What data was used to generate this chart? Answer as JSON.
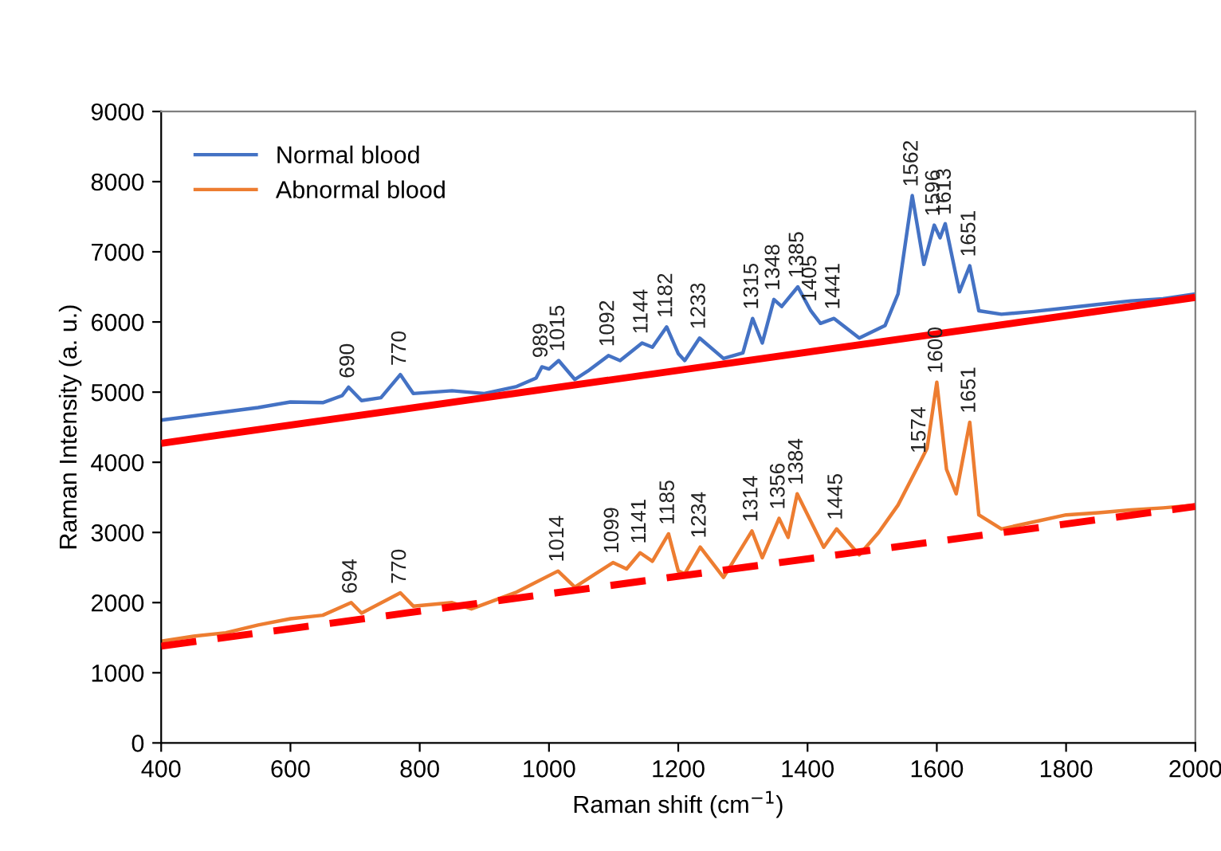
{
  "chart_data": {
    "type": "line",
    "xlabel": "Raman shift (cm$^{−1}$)",
    "ylabel": "Raman Intensity (a. u.)",
    "xlim": [
      400,
      2000
    ],
    "xticks": [
      400,
      600,
      800,
      1000,
      1200,
      1400,
      1600,
      1800,
      2000
    ],
    "ylim": [
      0,
      9000
    ],
    "yticks": [
      0,
      1000,
      2000,
      3000,
      4000,
      5000,
      6000,
      7000,
      8000,
      9000
    ],
    "grid": false,
    "legend": "top left",
    "marker": "none",
    "series": [
      {
        "name": "Normal blood",
        "color": "#4472c4",
        "line_style": "solid",
        "x": [
          400,
          450,
          500,
          550,
          600,
          650,
          680,
          690,
          710,
          740,
          770,
          790,
          850,
          900,
          950,
          980,
          989,
          1000,
          1015,
          1040,
          1060,
          1092,
          1110,
          1144,
          1160,
          1182,
          1200,
          1210,
          1233,
          1270,
          1300,
          1315,
          1330,
          1348,
          1360,
          1385,
          1405,
          1420,
          1441,
          1480,
          1520,
          1540,
          1562,
          1580,
          1596,
          1605,
          1613,
          1635,
          1651,
          1665,
          1700,
          1750,
          1800,
          1850,
          1900,
          1950,
          2000
        ],
        "values": [
          4600,
          4660,
          4720,
          4780,
          4860,
          4850,
          4950,
          5070,
          4880,
          4920,
          5250,
          4980,
          5020,
          4980,
          5080,
          5200,
          5360,
          5330,
          5450,
          5180,
          5300,
          5520,
          5450,
          5700,
          5640,
          5930,
          5550,
          5450,
          5770,
          5480,
          5560,
          6050,
          5700,
          6320,
          6220,
          6500,
          6160,
          5980,
          6050,
          5770,
          5950,
          6400,
          7800,
          6820,
          7380,
          7200,
          7400,
          6430,
          6800,
          6160,
          6110,
          6150,
          6200,
          6250,
          6300,
          6330,
          6400
        ]
      },
      {
        "name": "Abnormal blood",
        "color": "#ed7d31",
        "line_style": "solid",
        "x": [
          400,
          450,
          500,
          550,
          600,
          650,
          694,
          710,
          770,
          790,
          850,
          880,
          950,
          1014,
          1040,
          1070,
          1099,
          1120,
          1141,
          1160,
          1185,
          1200,
          1210,
          1234,
          1270,
          1314,
          1330,
          1356,
          1370,
          1384,
          1425,
          1445,
          1480,
          1510,
          1540,
          1574,
          1585,
          1600,
          1615,
          1630,
          1651,
          1665,
          1700,
          1750,
          1800,
          1850,
          1900,
          1950,
          2000
        ],
        "values": [
          1450,
          1520,
          1570,
          1680,
          1770,
          1820,
          2000,
          1850,
          2140,
          1950,
          2000,
          1910,
          2150,
          2450,
          2220,
          2400,
          2570,
          2480,
          2710,
          2590,
          2980,
          2450,
          2410,
          2790,
          2360,
          3020,
          2640,
          3200,
          2930,
          3550,
          2790,
          3050,
          2680,
          3000,
          3390,
          4000,
          4200,
          5140,
          3900,
          3550,
          4570,
          3250,
          3050,
          3150,
          3250,
          3280,
          3320,
          3350,
          3390
        ]
      },
      {
        "type": "line",
        "color": "#ff0000",
        "line_style": "solid",
        "x": [
          400,
          2000
        ],
        "values": [
          4270,
          6350
        ]
      },
      {
        "type": "line",
        "color": "#ff0000",
        "line_style": "dashed",
        "x": [
          400,
          2000
        ],
        "values": [
          1380,
          3370
        ]
      }
    ],
    "annotations": [
      {
        "text": "690",
        "x": 690,
        "y": 5070
      },
      {
        "text": "770",
        "x": 770,
        "y": 5250
      },
      {
        "text": "989",
        "x": 989,
        "y": 5360
      },
      {
        "text": "1015",
        "x": 1015,
        "y": 5450
      },
      {
        "text": "1092",
        "x": 1092,
        "y": 5520
      },
      {
        "text": "1144",
        "x": 1144,
        "y": 5700
      },
      {
        "text": "1182",
        "x": 1182,
        "y": 5930
      },
      {
        "text": "1233",
        "x": 1233,
        "y": 5770
      },
      {
        "text": "1315",
        "x": 1315,
        "y": 6050
      },
      {
        "text": "1348",
        "x": 1348,
        "y": 6320
      },
      {
        "text": "1385",
        "x": 1385,
        "y": 6500
      },
      {
        "text": "1405",
        "x": 1405,
        "y": 6160
      },
      {
        "text": "1441",
        "x": 1441,
        "y": 6050
      },
      {
        "text": "1562",
        "x": 1562,
        "y": 7800
      },
      {
        "text": "1596",
        "x": 1596,
        "y": 7380
      },
      {
        "text": "1613",
        "x": 1613,
        "y": 7400
      },
      {
        "text": "1651",
        "x": 1651,
        "y": 6800
      },
      {
        "text": "694",
        "x": 694,
        "y": 2000
      },
      {
        "text": "770",
        "x": 770,
        "y": 2140
      },
      {
        "text": "1014",
        "x": 1014,
        "y": 2450
      },
      {
        "text": "1099",
        "x": 1099,
        "y": 2570
      },
      {
        "text": "1141",
        "x": 1141,
        "y": 2710
      },
      {
        "text": "1185",
        "x": 1185,
        "y": 2980
      },
      {
        "text": "1234",
        "x": 1234,
        "y": 2790
      },
      {
        "text": "1314",
        "x": 1314,
        "y": 3020
      },
      {
        "text": "1356",
        "x": 1356,
        "y": 3200
      },
      {
        "text": "1384",
        "x": 1384,
        "y": 3550
      },
      {
        "text": "1445",
        "x": 1445,
        "y": 3050
      },
      {
        "text": "1574",
        "x": 1574,
        "y": 4000
      },
      {
        "text": "1600",
        "x": 1600,
        "y": 5140
      },
      {
        "text": "1651",
        "x": 1651,
        "y": 4570
      }
    ]
  }
}
